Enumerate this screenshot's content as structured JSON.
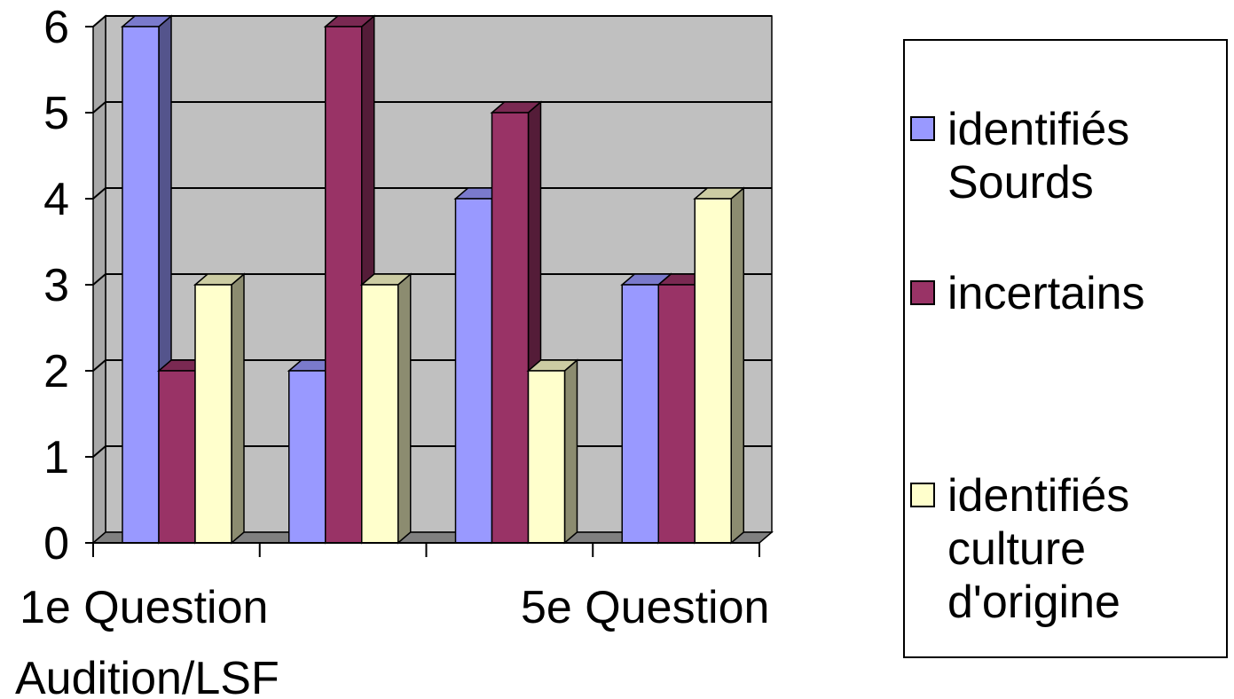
{
  "chart_data": {
    "type": "bar",
    "style": "3d-clustered",
    "categories": [
      "1e Question",
      "",
      "",
      "5e Question"
    ],
    "x_axis_extra_label": "Audition/LSF",
    "series": [
      {
        "name": "identifiés Sourds",
        "values": [
          6,
          2,
          4,
          3
        ],
        "color": "#9999ff"
      },
      {
        "name": "incertains",
        "values": [
          2,
          6,
          5,
          3
        ],
        "color": "#993366"
      },
      {
        "name": "identifiés culture d'origine",
        "values": [
          3,
          3,
          2,
          4
        ],
        "color": "#ffffcc"
      }
    ],
    "yticks": [
      "0",
      "1",
      "2",
      "3",
      "4",
      "5",
      "6"
    ],
    "ylim": [
      0,
      6
    ],
    "grid": true,
    "wall_color": "#c0c0c0",
    "legend_position": "right",
    "title": "",
    "xlabel": "",
    "ylabel": ""
  }
}
